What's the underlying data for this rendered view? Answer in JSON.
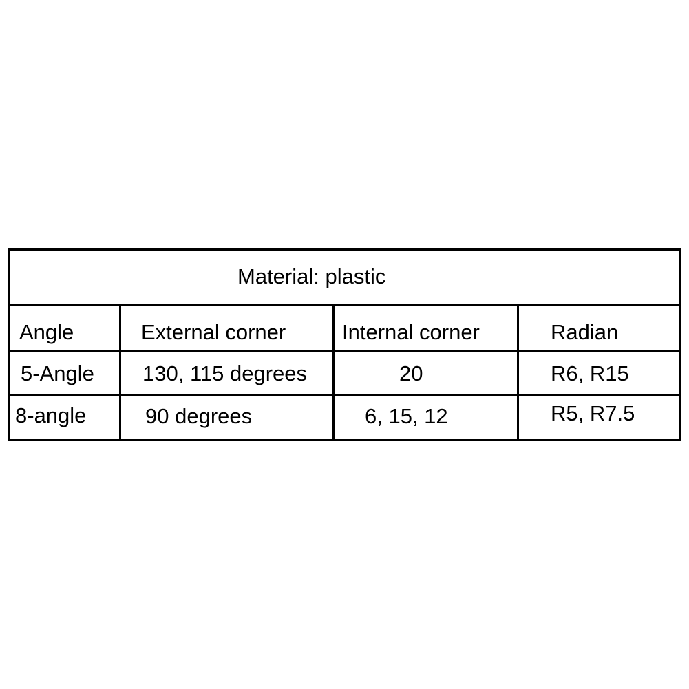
{
  "table": {
    "title": "Material: plastic",
    "headers": [
      "Angle",
      "External corner",
      "Internal corner",
      "Radian"
    ],
    "rows": [
      [
        "5-Angle",
        "130, 115 degrees",
        "20",
        "R6, R15"
      ],
      [
        "8-angle",
        "90 degrees",
        "6, 15, 12",
        "R5, R7.5"
      ]
    ]
  }
}
